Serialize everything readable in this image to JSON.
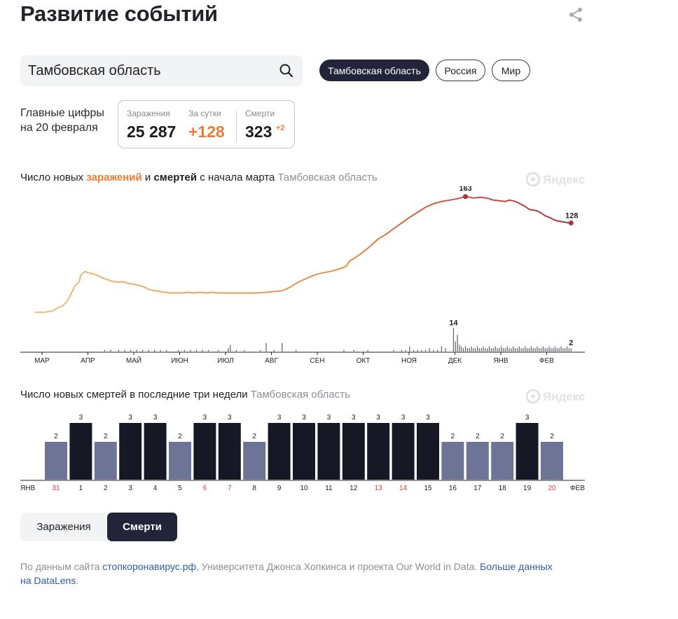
{
  "page": {
    "title": "Развитие событий",
    "share_icon": "share-icon",
    "search": {
      "value": "Тамбовская область",
      "icon": "search-icon"
    },
    "regions": [
      {
        "label": "Тамбовская область",
        "active": true
      },
      {
        "label": "Россия",
        "active": false
      },
      {
        "label": "Мир",
        "active": false
      }
    ],
    "headline": {
      "line1": "Главные цифры",
      "line2": "на 20 февраля"
    },
    "stats": {
      "infections_label": "Заражения",
      "infections_value": "25 287",
      "daily_label": "За сутки",
      "daily_value": "+128",
      "deaths_label": "Смерти",
      "deaths_value": "323",
      "deaths_delta": "+2"
    },
    "chart1_title": {
      "part1": "Число новых ",
      "infections": "заражений",
      "part2": " и ",
      "deaths": "смертей",
      "part3": " с начала марта",
      "region": "Тамбовская область"
    },
    "chart2_title": {
      "text": "Число новых смертей в последние три недели",
      "region": "Тамбовская область"
    },
    "watermark": "Яндекс",
    "toggle": [
      {
        "label": "Заражения",
        "active": false
      },
      {
        "label": "Смерти",
        "active": true
      }
    ],
    "footer": {
      "prefix": "По данным сайта ",
      "link1": "стопкоронавирус.рф",
      "middle": ",  Университета Джонса Хопкинса и  проекта Our World in Data. ",
      "link2a": "Больше данных",
      "link2b": "на DataLens",
      "suffix": "."
    },
    "colors": {
      "infection_start": "#efbf7a",
      "infection_mid": "#e88f45",
      "infection_end": "#a8323c",
      "death_bar": "#5d5e6e",
      "bar_dark": "#161826",
      "bar_light": "#6e7496",
      "weekend_label": "#d9412b"
    }
  },
  "chart_data": [
    {
      "type": "line",
      "series": [
        {
          "name": "заражения",
          "x": [
            0,
            3,
            5,
            7,
            9,
            10,
            12,
            14,
            16,
            18,
            20,
            22,
            23,
            25,
            27,
            29,
            31,
            33,
            35,
            38,
            40,
            42,
            44,
            46,
            48,
            50,
            53,
            55,
            57,
            60,
            63,
            65,
            68,
            71,
            74,
            77,
            80,
            83,
            86,
            89,
            92,
            96,
            100,
            104,
            108,
            112,
            116,
            120,
            124,
            128,
            132,
            136,
            140,
            144,
            148,
            152,
            156,
            158,
            160,
            164,
            168,
            172,
            176,
            180,
            184,
            188,
            192,
            196,
            200,
            204,
            208,
            212,
            216,
            220,
            224,
            228,
            230,
            233,
            236,
            238,
            240,
            242,
            244,
            246,
            248,
            250,
            252,
            254,
            256,
            258,
            260,
            262,
            264,
            266,
            268,
            269
          ],
          "y": [
            3,
            3,
            3,
            4,
            5,
            7,
            10,
            12,
            18,
            28,
            40,
            45,
            55,
            60,
            58,
            57,
            55,
            52,
            50,
            47,
            46,
            45,
            46,
            44,
            43,
            42,
            40,
            38,
            35,
            33,
            32,
            31,
            30,
            30,
            30,
            31,
            30,
            31,
            30,
            31,
            30,
            30,
            30,
            30,
            30,
            30,
            31,
            32,
            33,
            38,
            45,
            50,
            55,
            58,
            60,
            63,
            67,
            75,
            78,
            86,
            95,
            105,
            112,
            120,
            128,
            136,
            143,
            150,
            155,
            158,
            160,
            162,
            165,
            163,
            164,
            162,
            160,
            159,
            158,
            160,
            159,
            157,
            154,
            151,
            147,
            146,
            145,
            142,
            138,
            136,
            133,
            131,
            130,
            129,
            128,
            128
          ]
        }
      ],
      "annotations": [
        {
          "label": "163"
        },
        {
          "label": "128"
        }
      ]
    },
    {
      "type": "bar",
      "title": "Число новых смертей в последние три недели",
      "categories": [
        "31",
        "1",
        "2",
        "3",
        "4",
        "5",
        "6",
        "7",
        "8",
        "9",
        "10",
        "11",
        "12",
        "13",
        "14",
        "15",
        "16",
        "17",
        "18",
        "19",
        "20"
      ],
      "values": [
        2,
        3,
        2,
        3,
        3,
        2,
        3,
        3,
        2,
        3,
        3,
        3,
        3,
        3,
        3,
        3,
        2,
        2,
        2,
        3,
        2
      ],
      "weekend": [
        true,
        false,
        false,
        false,
        false,
        false,
        true,
        true,
        false,
        false,
        false,
        false,
        false,
        true,
        true,
        false,
        false,
        false,
        false,
        false,
        true
      ],
      "start_label": "ЯНВ",
      "end_label": "ФЕВ"
    },
    {
      "type": "bar",
      "series": [
        {
          "name": "смерти",
          "max_label": "14",
          "last_label": "2"
        }
      ],
      "months": [
        "МАР",
        "АПР",
        "МАЙ",
        "ИЮН",
        "ИЮЛ",
        "АВГ",
        "СЕН",
        "ОКТ",
        "НОЯ",
        "ДЕК",
        "ЯНВ",
        "ФЕВ"
      ]
    }
  ]
}
